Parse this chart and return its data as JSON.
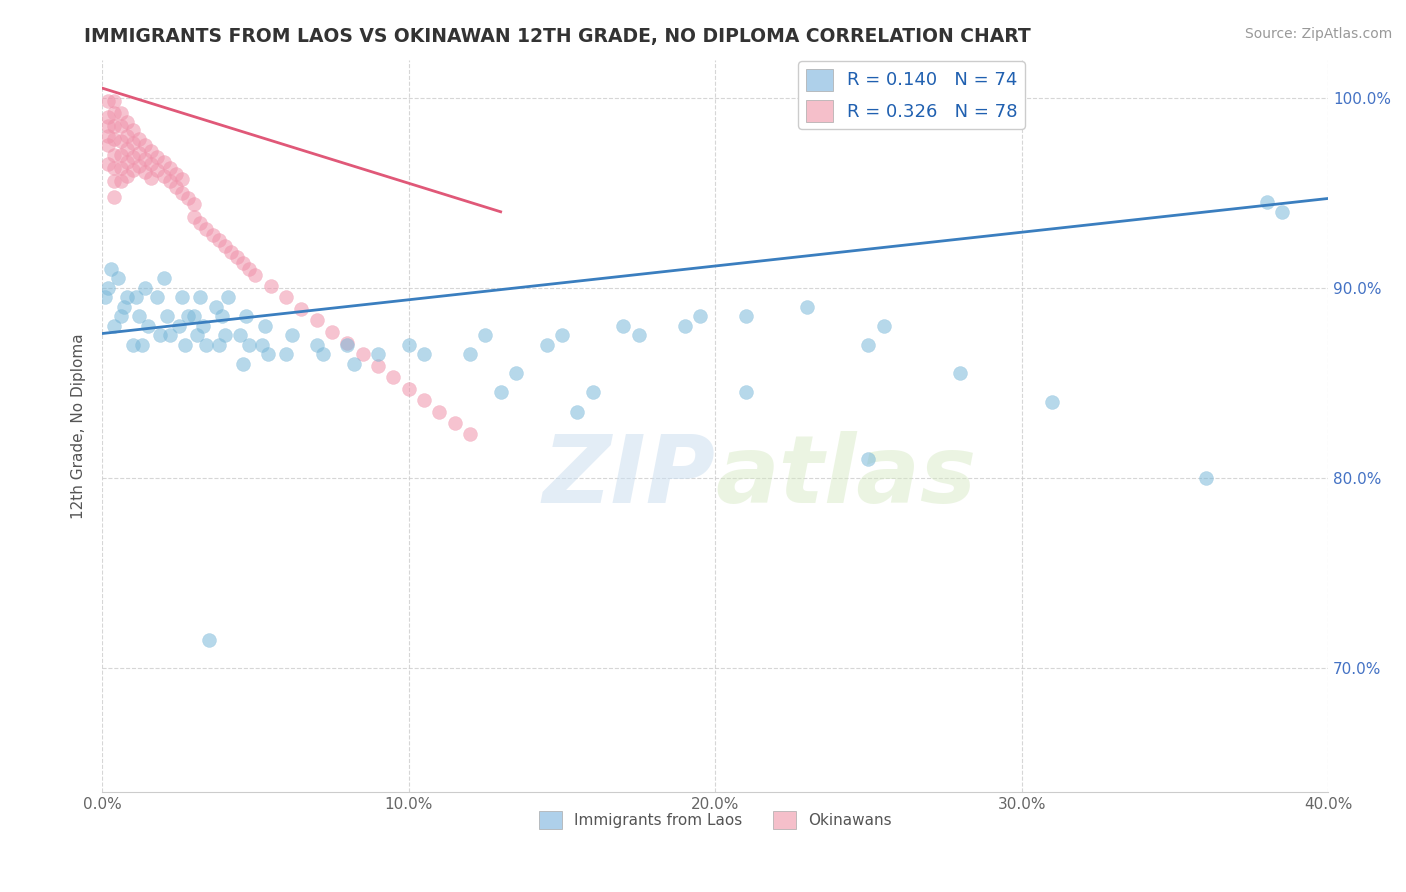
{
  "title": "IMMIGRANTS FROM LAOS VS OKINAWAN 12TH GRADE, NO DIPLOMA CORRELATION CHART",
  "source": "Source: ZipAtlas.com",
  "ylabel": "12th Grade, No Diploma",
  "xmin": 0.0,
  "xmax": 0.4,
  "ymin": 0.635,
  "ymax": 1.02,
  "yticks": [
    0.7,
    0.8,
    0.9,
    1.0
  ],
  "ytick_labels": [
    "70.0%",
    "80.0%",
    "90.0%",
    "100.0%"
  ],
  "xticks": [
    0.0,
    0.1,
    0.2,
    0.3,
    0.4
  ],
  "xtick_labels": [
    "0.0%",
    "10.0%",
    "20.0%",
    "30.0%",
    "40.0%"
  ],
  "blue_scatter_x": [
    0.001,
    0.002,
    0.003,
    0.004,
    0.005,
    0.006,
    0.007,
    0.008,
    0.01,
    0.011,
    0.012,
    0.013,
    0.014,
    0.015,
    0.018,
    0.019,
    0.02,
    0.021,
    0.022,
    0.025,
    0.026,
    0.027,
    0.028,
    0.03,
    0.031,
    0.032,
    0.033,
    0.034,
    0.037,
    0.038,
    0.039,
    0.04,
    0.041,
    0.045,
    0.046,
    0.047,
    0.048,
    0.052,
    0.053,
    0.054,
    0.06,
    0.062,
    0.07,
    0.072,
    0.08,
    0.082,
    0.09,
    0.1,
    0.105,
    0.12,
    0.125,
    0.145,
    0.15,
    0.17,
    0.175,
    0.19,
    0.195,
    0.21,
    0.23,
    0.25,
    0.255,
    0.28,
    0.31,
    0.36,
    0.38,
    0.385,
    0.25,
    0.21,
    0.155,
    0.16,
    0.13,
    0.135,
    0.035
  ],
  "blue_scatter_y": [
    0.895,
    0.9,
    0.91,
    0.88,
    0.905,
    0.885,
    0.89,
    0.895,
    0.87,
    0.895,
    0.885,
    0.87,
    0.9,
    0.88,
    0.895,
    0.875,
    0.905,
    0.885,
    0.875,
    0.88,
    0.895,
    0.87,
    0.885,
    0.885,
    0.875,
    0.895,
    0.88,
    0.87,
    0.89,
    0.87,
    0.885,
    0.875,
    0.895,
    0.875,
    0.86,
    0.885,
    0.87,
    0.87,
    0.88,
    0.865,
    0.865,
    0.875,
    0.87,
    0.865,
    0.87,
    0.86,
    0.865,
    0.87,
    0.865,
    0.865,
    0.875,
    0.87,
    0.875,
    0.88,
    0.875,
    0.88,
    0.885,
    0.885,
    0.89,
    0.87,
    0.88,
    0.855,
    0.84,
    0.8,
    0.945,
    0.94,
    0.81,
    0.845,
    0.835,
    0.845,
    0.845,
    0.855,
    0.715
  ],
  "pink_scatter_x": [
    0.002,
    0.002,
    0.002,
    0.002,
    0.002,
    0.002,
    0.004,
    0.004,
    0.004,
    0.004,
    0.004,
    0.004,
    0.004,
    0.004,
    0.006,
    0.006,
    0.006,
    0.006,
    0.006,
    0.006,
    0.008,
    0.008,
    0.008,
    0.008,
    0.008,
    0.01,
    0.01,
    0.01,
    0.01,
    0.012,
    0.012,
    0.012,
    0.014,
    0.014,
    0.014,
    0.016,
    0.016,
    0.016,
    0.018,
    0.018,
    0.02,
    0.02,
    0.022,
    0.022,
    0.024,
    0.024,
    0.026,
    0.026,
    0.028,
    0.03,
    0.03,
    0.032,
    0.034,
    0.036,
    0.038,
    0.04,
    0.042,
    0.044,
    0.046,
    0.048,
    0.05,
    0.055,
    0.06,
    0.065,
    0.07,
    0.075,
    0.08,
    0.085,
    0.09,
    0.095,
    0.1,
    0.105,
    0.11,
    0.115,
    0.12
  ],
  "pink_scatter_y": [
    0.99,
    0.998,
    0.985,
    0.975,
    0.965,
    0.98,
    0.998,
    0.992,
    0.985,
    0.978,
    0.97,
    0.963,
    0.956,
    0.948,
    0.992,
    0.985,
    0.977,
    0.97,
    0.963,
    0.956,
    0.987,
    0.98,
    0.973,
    0.966,
    0.959,
    0.983,
    0.976,
    0.969,
    0.962,
    0.978,
    0.971,
    0.964,
    0.975,
    0.968,
    0.961,
    0.972,
    0.965,
    0.958,
    0.969,
    0.962,
    0.966,
    0.959,
    0.963,
    0.956,
    0.96,
    0.953,
    0.957,
    0.95,
    0.947,
    0.944,
    0.937,
    0.934,
    0.931,
    0.928,
    0.925,
    0.922,
    0.919,
    0.916,
    0.913,
    0.91,
    0.907,
    0.901,
    0.895,
    0.889,
    0.883,
    0.877,
    0.871,
    0.865,
    0.859,
    0.853,
    0.847,
    0.841,
    0.835,
    0.829,
    0.823
  ],
  "blue_line_x": [
    0.0,
    0.4
  ],
  "blue_line_y": [
    0.876,
    0.947
  ],
  "pink_line_x": [
    0.0,
    0.13
  ],
  "pink_line_y": [
    1.005,
    0.94
  ],
  "watermark_zip": "ZIP",
  "watermark_atlas": "atlas",
  "title_color": "#333333",
  "blue_color": "#7ab8d9",
  "pink_color": "#f093ab",
  "blue_line_color": "#3a7ebf",
  "pink_line_color": "#e05878",
  "grid_color": "#cccccc",
  "right_tick_color": "#4472c4",
  "legend_blue_color": "#aed0ea",
  "legend_pink_color": "#f5bfca"
}
